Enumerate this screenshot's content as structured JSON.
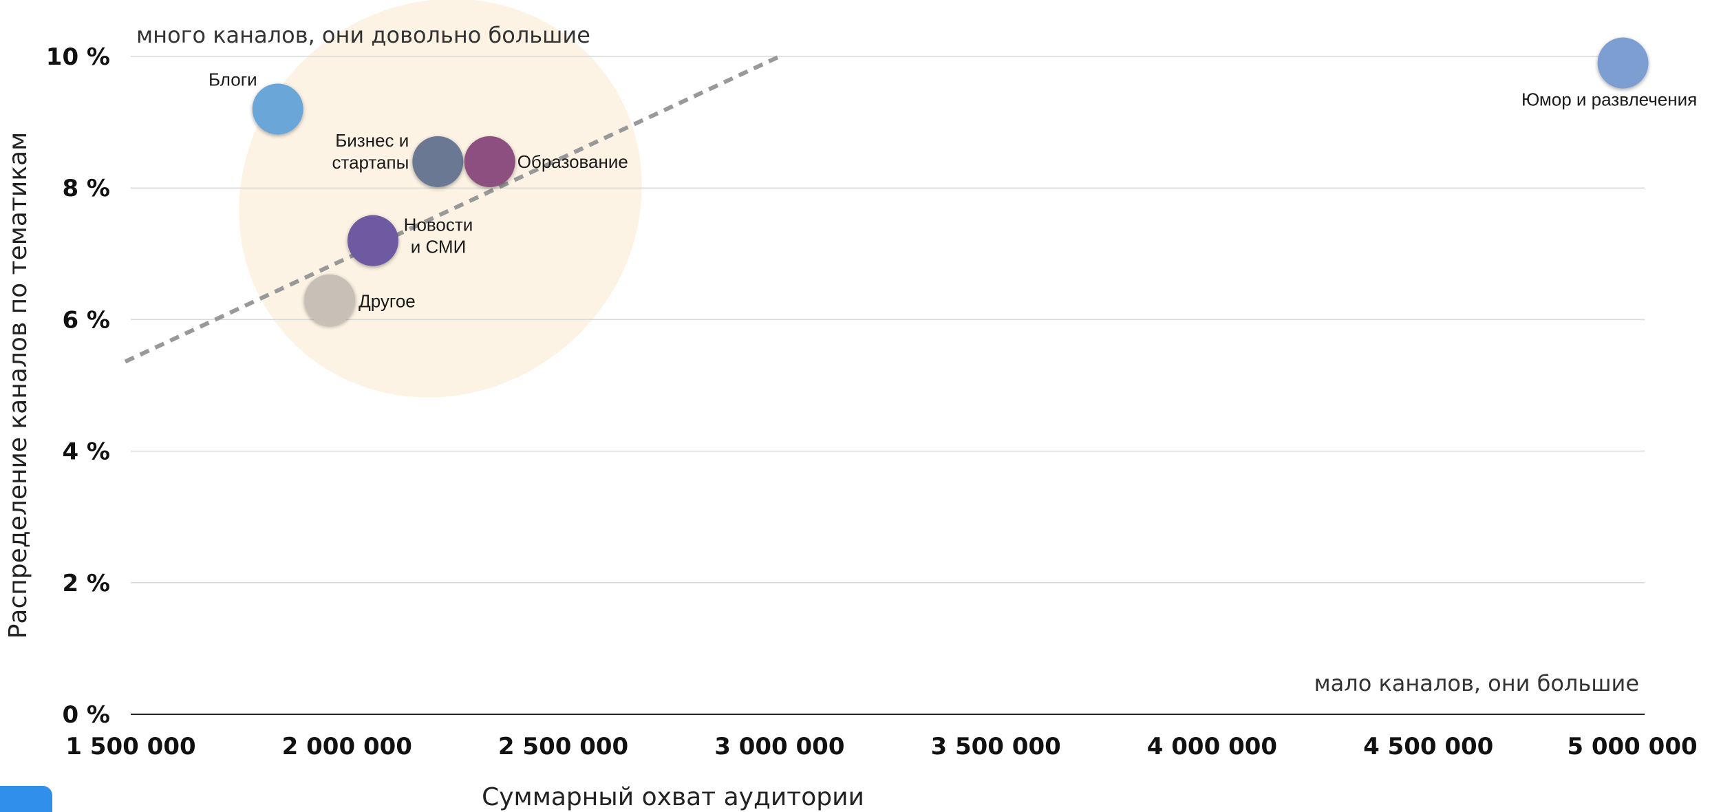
{
  "chart_data": {
    "type": "scatter",
    "xlabel": "Суммарный охват аудитории",
    "ylabel": "Распределение каналов по тематикам",
    "xlim": [
      1500000,
      5000000
    ],
    "ylim": [
      0,
      10
    ],
    "x_ticks": [
      "1 500 000",
      "2 000 000",
      "2 500 000",
      "3 000 000",
      "3 500 000",
      "4 000 000",
      "4 500 000",
      "5 000 000"
    ],
    "y_ticks": [
      "0 %",
      "2 %",
      "4 %",
      "6 %",
      "8 %",
      "10 %"
    ],
    "grid": "horizontal",
    "annotations": {
      "top_left": "много каналов, они довольно большие",
      "bottom_right": "мало каналов, они большие"
    },
    "trendline": {
      "style": "dashed",
      "from": [
        1500000,
        5.4
      ],
      "to": [
        3000000,
        10.0
      ]
    },
    "points": [
      {
        "label": "Блоги",
        "x": 1840000,
        "y": 9.2,
        "color": "#6aa6d8"
      },
      {
        "label": "Бизнес и стартапы",
        "x": 2210000,
        "y": 8.4,
        "color": "#6b7894"
      },
      {
        "label": "Образование",
        "x": 2330000,
        "y": 8.4,
        "color": "#8c4f7f"
      },
      {
        "label": "Новости и СМИ",
        "x": 2060000,
        "y": 7.2,
        "color": "#6e5aa0"
      },
      {
        "label": "Другое",
        "x": 1960000,
        "y": 6.3,
        "color": "#c8c0b6"
      },
      {
        "label": "Юмор и развлечения",
        "x": 4950000,
        "y": 9.9,
        "color": "#7d9ed0"
      }
    ],
    "colors": {
      "highlight_region": "#fdf3e4",
      "grid": "#d9d9d9",
      "trendline": "#999999"
    }
  }
}
